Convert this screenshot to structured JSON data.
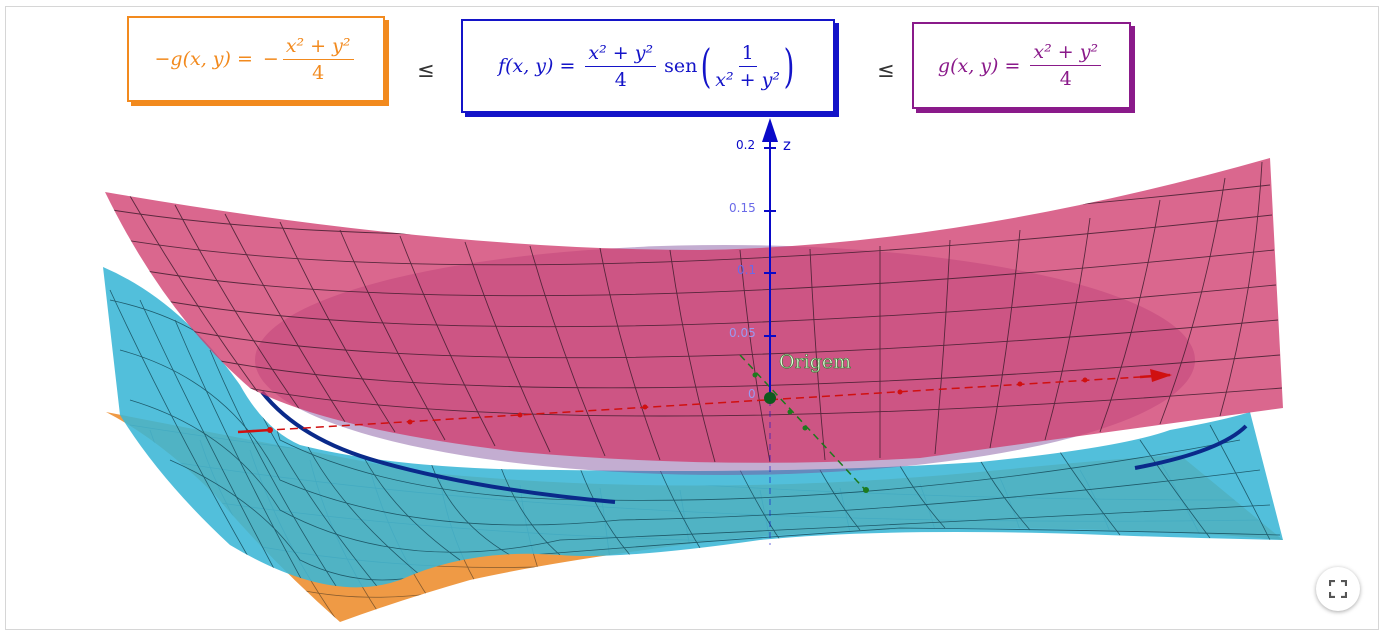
{
  "formulas": {
    "left": {
      "lhs": "−g(x, y) =",
      "sign": "−",
      "numerator": "x² + y²",
      "denominator": "4",
      "color": "#f28a1e"
    },
    "center": {
      "lhs": "f(x, y) =",
      "numerator": "x² + y²",
      "denominator": "4",
      "func": "sen",
      "inner_numerator": "1",
      "inner_denominator": "x² + y²",
      "color": "#1414c8"
    },
    "right": {
      "lhs": "g(x, y) =",
      "numerator": "x² + y²",
      "denominator": "4",
      "color": "#8a1a8a"
    },
    "leq_symbol": "≤"
  },
  "axis": {
    "label": "z",
    "ticks": [
      "0.2",
      "0.15",
      "0.1",
      "0.05",
      "0"
    ],
    "color": "#0a0ac8"
  },
  "origin_label": "Origem",
  "icons": {
    "fullscreen": "fullscreen-icon"
  },
  "colors": {
    "upper_surface": "#cf3c6e",
    "function_surface": "#3ab6d6",
    "lower_surface": "#ef9a45",
    "zero_curve": "#0a2a8a",
    "x_axis": "#d01010",
    "y_axis": "#1d7a1d"
  }
}
